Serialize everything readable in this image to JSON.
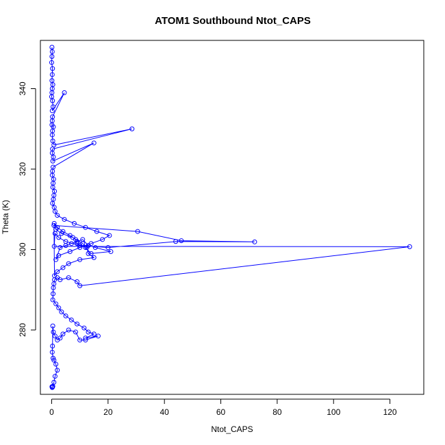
{
  "chart_data": {
    "type": "line",
    "title": "ATOM1 Southbound Ntot_CAPS",
    "xlabel": "Ntot_CAPS",
    "ylabel": "Theta (K)",
    "xlim": [
      -4,
      132
    ],
    "ylim": [
      264,
      352
    ],
    "xticks": [
      0,
      20,
      40,
      60,
      80,
      100,
      120
    ],
    "yticks": [
      280,
      300,
      320,
      340
    ],
    "grid": false,
    "legend": "none",
    "marker": "open-circle",
    "color": "#0000ff",
    "series": [
      {
        "x": [
          0.1,
          0.2,
          0.1,
          0.0,
          0.3,
          0.2,
          0.1,
          0.4,
          0.2,
          0.1,
          0.0,
          0.3,
          0.5,
          0.2,
          4.5,
          0.3,
          0.2,
          0.1,
          0.6,
          0.3,
          0.2,
          0.4,
          0.8,
          28.5,
          0.3,
          0.2,
          0.6,
          0.4,
          15.0,
          0.5,
          0.3,
          0.2,
          0.7,
          0.5,
          0.4,
          1.0,
          0.8,
          0.6,
          0.3,
          0.9,
          1.2,
          2.0,
          4.5,
          8.0,
          12.0,
          16.0,
          20.5,
          18.0,
          14.0,
          10.0,
          6.5,
          2.5,
          1.5,
          3.0,
          5.0,
          7.0,
          9.0,
          11.0,
          13.0,
          15.5,
          21.0,
          14.0,
          12.0,
          9.0,
          8.5,
          6.5,
          4.0,
          2.0,
          0.9,
          1.5,
          3.5,
          7.5,
          11.0,
          12.5,
          13.0,
          15.0,
          10.0,
          6.0,
          4.0,
          2.0,
          1.0,
          0.8,
          30.5,
          46.0,
          72.0,
          44.0,
          20.0,
          10.0,
          5.0,
          2.5,
          1.2,
          0.9,
          127.0,
          10.0,
          9.0,
          6.0,
          3.0,
          2.0,
          1.0,
          0.8,
          0.6,
          0.5,
          0.4,
          1.5,
          2.5,
          3.5,
          5.0,
          7.0,
          9.0,
          11.5,
          13.0,
          15.0,
          12.0,
          16.5,
          12.0,
          10.0,
          8.5,
          6.0,
          4.0,
          3.0,
          2.0,
          1.2,
          0.6,
          0.4,
          0.3,
          0.2,
          0.5,
          0.8,
          1.5,
          2.0,
          1.2,
          0.8,
          0.4,
          0.3,
          0.2,
          0.1
        ],
        "y": [
          350.3,
          349.2,
          348.0,
          346.5,
          345.0,
          343.5,
          342.0,
          341.0,
          340.0,
          339.0,
          338.0,
          337.0,
          335.5,
          334.5,
          339.0,
          333.0,
          332.0,
          331.0,
          330.5,
          329.5,
          328.5,
          327.0,
          326.0,
          330.0,
          325.0,
          324.0,
          323.0,
          322.0,
          326.5,
          320.5,
          319.5,
          318.5,
          317.5,
          316.5,
          315.5,
          314.5,
          313.5,
          312.5,
          311.5,
          310.5,
          309.5,
          308.5,
          307.5,
          306.5,
          305.5,
          304.5,
          303.5,
          302.5,
          301.5,
          300.5,
          299.5,
          298.5,
          297.5,
          300.5,
          301.0,
          301.5,
          302.0,
          302.5,
          301.0,
          300.5,
          299.5,
          299.0,
          300.5,
          301.5,
          302.5,
          303.5,
          304.5,
          305.5,
          306.5,
          305.0,
          304.0,
          303.0,
          301.5,
          300.5,
          299.0,
          298.0,
          297.5,
          296.5,
          295.5,
          294.5,
          293.5,
          306.0,
          304.5,
          302.2,
          301.9,
          302.0,
          300.5,
          301.0,
          302.0,
          303.0,
          304.0,
          300.8,
          300.7,
          291.0,
          292.0,
          293.0,
          292.5,
          293.0,
          292.5,
          291.5,
          290.5,
          289.0,
          287.5,
          286.5,
          285.5,
          284.5,
          283.5,
          282.5,
          281.5,
          280.5,
          279.5,
          279.0,
          278.0,
          278.5,
          277.5,
          277.5,
          279.5,
          280.0,
          279.0,
          278.0,
          277.5,
          278.5,
          279.5,
          281.0,
          276.0,
          274.5,
          273.0,
          272.5,
          271.5,
          270.0,
          268.5,
          267.0,
          266.0,
          265.8,
          265.7,
          265.9
        ]
      }
    ]
  }
}
